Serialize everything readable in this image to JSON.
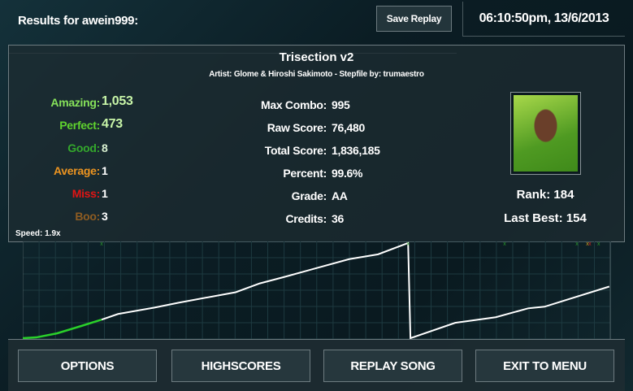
{
  "header": {
    "title": "Results for awein999:",
    "save_replay": "Save Replay",
    "datetime": "06:10:50pm, 13/6/2013"
  },
  "song": {
    "title": "Trisection v2",
    "credits_line": "Artist: Glome & Hiroshi Sakimoto  -  Stepfile by: trumaestro"
  },
  "judgements": [
    {
      "label": "Amazing:",
      "value": "1,053",
      "color": "#86e25a",
      "value_color": "#c8f5a8"
    },
    {
      "label": "Perfect:",
      "value": "473",
      "color": "#5fd22e",
      "value_color": "#c8f5a8"
    },
    {
      "label": "Good:",
      "value": "8",
      "color": "#34a82c",
      "value_color": "#d8f0d0"
    },
    {
      "label": "Average:",
      "value": "1",
      "color": "#ec9420",
      "value_color": "#ffffff"
    },
    {
      "label": "Miss:",
      "value": "1",
      "color": "#e01414",
      "value_color": "#ffffff"
    },
    {
      "label": "Boo:",
      "value": "3",
      "color": "#8e5c22",
      "value_color": "#ffffff"
    }
  ],
  "stats": [
    {
      "label": "Max Combo:",
      "value": "995"
    },
    {
      "label": "Raw Score:",
      "value": "76,480"
    },
    {
      "label": "Total Score:",
      "value": "1,836,185"
    },
    {
      "label": "Percent:",
      "value": "99.6%"
    },
    {
      "label": "Grade:",
      "value": "AA"
    },
    {
      "label": "Credits:",
      "value": "36"
    }
  ],
  "speed": "Speed: 1.9x",
  "rank": "Rank: 184",
  "last_best": "Last Best: 154",
  "chart_data": {
    "type": "line",
    "xlim": [
      0,
      100
    ],
    "ylim": [
      0,
      100
    ],
    "grid": true,
    "series": [
      {
        "values": [
          [
            0,
            0
          ],
          [
            2.3,
            0.8
          ],
          [
            5.8,
            5
          ],
          [
            9.9,
            12.6
          ],
          [
            13.4,
            19.3
          ],
          [
            16.2,
            25.2
          ],
          [
            22.4,
            31.9
          ],
          [
            26.5,
            37
          ],
          [
            36.2,
            47.9
          ],
          [
            40.3,
            57.1
          ],
          [
            44.5,
            63.9
          ],
          [
            55.5,
            82.4
          ],
          [
            60.4,
            87.4
          ],
          [
            65.5,
            99.2
          ],
          [
            65.9,
            0
          ],
          [
            73.5,
            16
          ],
          [
            80.4,
            21.8
          ],
          [
            85.9,
            31.1
          ],
          [
            88.7,
            32.8
          ],
          [
            99.7,
            53.8
          ]
        ],
        "full_combo_until": 13.4,
        "color": "#ffffff",
        "full_combo_color": "#2ad02a"
      }
    ],
    "marks": [
      {
        "x": 13.4,
        "color": "#2a9a2a"
      },
      {
        "x": 65.5,
        "color": "#2a9a2a"
      },
      {
        "x": 81.9,
        "color": "#2a9a2a"
      },
      {
        "x": 94.2,
        "color": "#2a9a2a"
      },
      {
        "x": 96,
        "color": "#d0a020"
      },
      {
        "x": 96.4,
        "color": "#d02020"
      },
      {
        "x": 97.9,
        "color": "#2a9a2a"
      }
    ]
  },
  "buttons": {
    "options": "OPTIONS",
    "highscores": "HIGHSCORES",
    "replay": "REPLAY SONG",
    "exit": "EXIT TO MENU"
  }
}
